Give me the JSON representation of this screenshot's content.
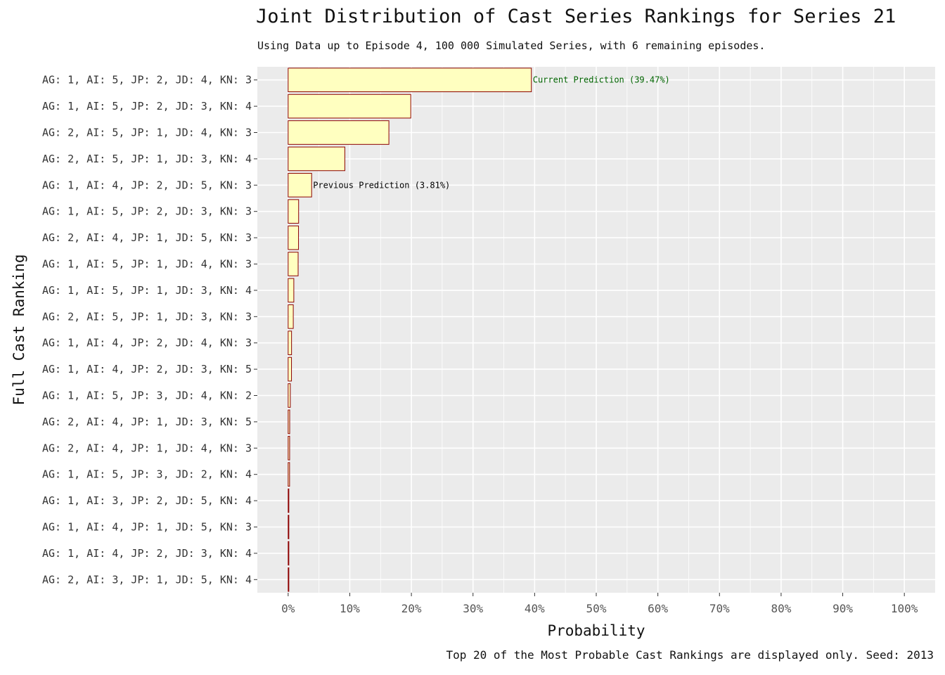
{
  "chart_data": {
    "type": "bar",
    "orientation": "horizontal",
    "title": "Joint Distribution of Cast Series Rankings for Series 21",
    "subtitle": "Using Data up to Episode 4, 100 000 Simulated Series, with 6 remaining episodes.",
    "caption": "Top 20 of the Most Probable Cast Rankings are displayed only. Seed: 2013",
    "xlabel": "Probability",
    "ylabel": "Full Cast Ranking",
    "xlim": [
      -0.05,
      1.05
    ],
    "x_ticks": [
      0,
      0.1,
      0.2,
      0.3,
      0.4,
      0.5,
      0.6,
      0.7,
      0.8,
      0.9,
      1.0
    ],
    "x_tick_labels": [
      "0%",
      "10%",
      "20%",
      "30%",
      "40%",
      "50%",
      "60%",
      "70%",
      "80%",
      "90%",
      "100%"
    ],
    "grid": true,
    "bar_fill": "#ffffc0",
    "bar_stroke": "#8b0000",
    "panel_background": "#ebebeb",
    "categories": [
      "AG: 1, AI: 5, JP: 2, JD: 4, KN: 3",
      "AG: 1, AI: 5, JP: 2, JD: 3, KN: 4",
      "AG: 2, AI: 5, JP: 1, JD: 4, KN: 3",
      "AG: 2, AI: 5, JP: 1, JD: 3, KN: 4",
      "AG: 1, AI: 4, JP: 2, JD: 5, KN: 3",
      "AG: 1, AI: 5, JP: 2, JD: 3, KN: 3",
      "AG: 2, AI: 4, JP: 1, JD: 5, KN: 3",
      "AG: 1, AI: 5, JP: 1, JD: 4, KN: 3",
      "AG: 1, AI: 5, JP: 1, JD: 3, KN: 4",
      "AG: 2, AI: 5, JP: 1, JD: 3, KN: 3",
      "AG: 1, AI: 4, JP: 2, JD: 4, KN: 3",
      "AG: 1, AI: 4, JP: 2, JD: 3, KN: 5",
      "AG: 1, AI: 5, JP: 3, JD: 4, KN: 2",
      "AG: 2, AI: 4, JP: 1, JD: 3, KN: 5",
      "AG: 2, AI: 4, JP: 1, JD: 4, KN: 3",
      "AG: 1, AI: 5, JP: 3, JD: 2, KN: 4",
      "AG: 1, AI: 3, JP: 2, JD: 5, KN: 4",
      "AG: 1, AI: 4, JP: 1, JD: 5, KN: 3",
      "AG: 1, AI: 4, JP: 2, JD: 3, KN: 4",
      "AG: 2, AI: 3, JP: 1, JD: 5, KN: 4"
    ],
    "values": [
      0.3947,
      0.199,
      0.1635,
      0.092,
      0.0381,
      0.017,
      0.0168,
      0.0162,
      0.0092,
      0.0083,
      0.0055,
      0.0054,
      0.0035,
      0.0025,
      0.0024,
      0.0023,
      0.001,
      0.001,
      0.0008,
      0.0007
    ],
    "annotations": [
      {
        "category_index": 0,
        "text": "Current Prediction (39.47%)",
        "color": "#006400"
      },
      {
        "category_index": 4,
        "text": "Previous Prediction (3.81%)",
        "color": "#000000"
      }
    ]
  }
}
